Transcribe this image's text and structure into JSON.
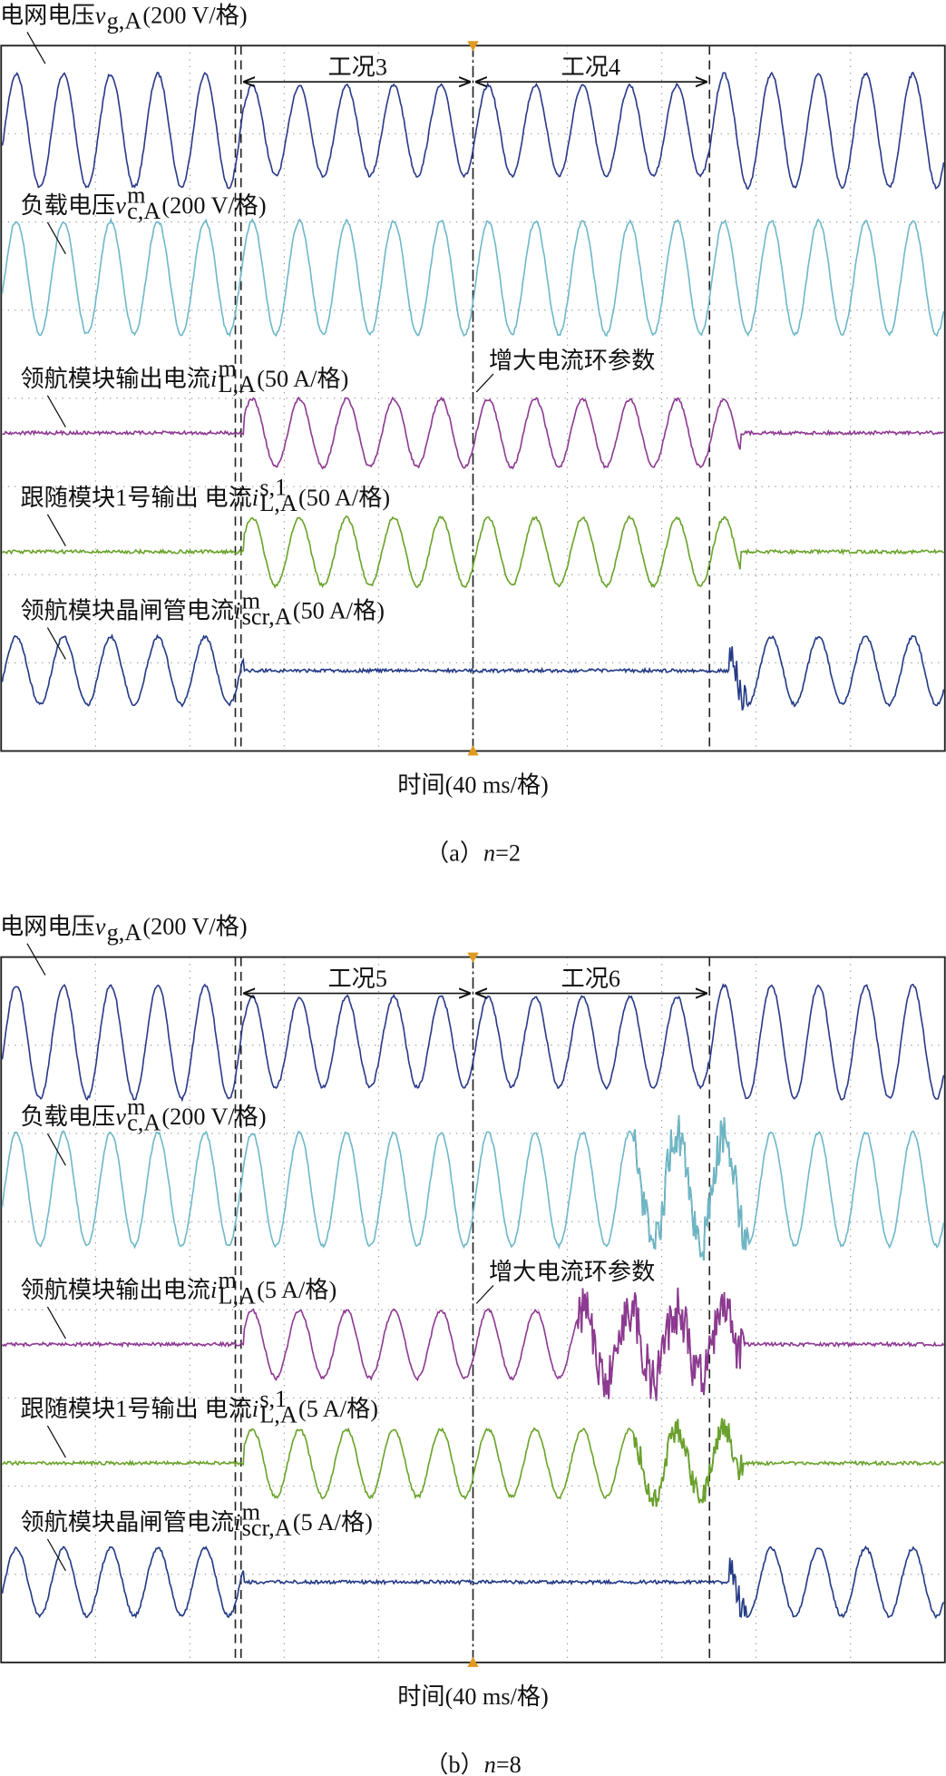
{
  "panels": [
    {
      "traces": [
        {
          "name": "电网电压",
          "var": "v",
          "sub": "g,A",
          "scale": "(200 V/格)"
        },
        {
          "name": "负载电压",
          "var": "v",
          "sup": "m",
          "sub": "c,A",
          "scale": "(200 V/格)"
        },
        {
          "name": "领航模块输出电流",
          "var": "i",
          "sup": "m",
          "sub": "L,A",
          "scale": "(50 A/格)"
        },
        {
          "name": "跟随模块1号输出 电流",
          "var": "i",
          "sup": "s,1",
          "sub": "L,A",
          "scale": "(50 A/格)"
        },
        {
          "name": "领航模块晶闸管电流",
          "var": "i",
          "sup": "m",
          "sub": "scr,A",
          "scale": "(50 A/格)"
        }
      ],
      "conditions": [
        "工况3",
        "工况4"
      ],
      "annotation": "增大电流环参数",
      "x_label": "时间(40 ms/格)",
      "caption": {
        "label": "（a）",
        "var": "n",
        "value": "=2"
      }
    },
    {
      "traces": [
        {
          "name": "电网电压",
          "var": "v",
          "sub": "g,A",
          "scale": "(200 V/格)"
        },
        {
          "name": "负载电压",
          "var": "v",
          "sup": "m",
          "sub": "c,A",
          "scale": "(200 V/格)"
        },
        {
          "name": "领航模块输出电流",
          "var": "i",
          "sup": "m",
          "sub": "L,A",
          "scale": "(5 A/格)"
        },
        {
          "name": "跟随模块1号输出 电流",
          "var": "i",
          "sup": "s,1",
          "sub": "L,A",
          "scale": "(5 A/格)"
        },
        {
          "name": "领航模块晶闸管电流",
          "var": "i",
          "sup": "m",
          "sub": "scr,A",
          "scale": "(5 A/格)"
        }
      ],
      "conditions": [
        "工况5",
        "工况6"
      ],
      "annotation": "增大电流环参数",
      "x_label": "时间(40 ms/格)",
      "caption": {
        "label": "（b）",
        "var": "n",
        "value": "=8"
      }
    }
  ]
}
